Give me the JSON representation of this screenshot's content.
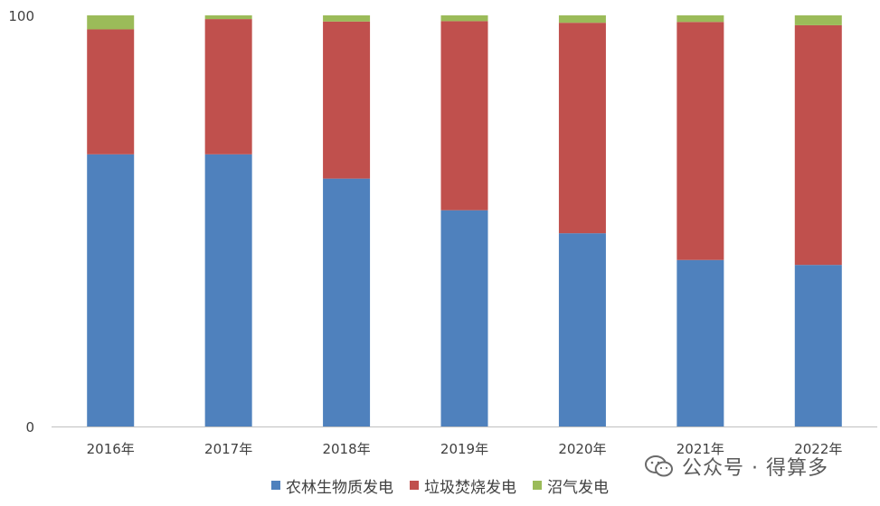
{
  "chart_data": {
    "type": "bar",
    "stacked": true,
    "categories": [
      "2016年",
      "2017年",
      "2018年",
      "2019年",
      "2020年",
      "2021年",
      "2022年"
    ],
    "series": [
      {
        "name": "农林生物质发电",
        "color": "#4F81BD",
        "values": [
          66.2,
          66.2,
          60.3,
          52.6,
          47.0,
          40.5,
          39.3
        ]
      },
      {
        "name": "垃圾焚烧发电",
        "color": "#C0504D",
        "values": [
          30.4,
          32.9,
          38.2,
          46.0,
          51.2,
          57.9,
          58.3
        ]
      },
      {
        "name": "沼气发电",
        "color": "#9BBB59",
        "values": [
          3.4,
          0.9,
          1.5,
          1.4,
          1.8,
          1.6,
          2.4
        ]
      }
    ],
    "y_ticks": [
      "0",
      "100"
    ],
    "ylim": [
      0,
      100
    ],
    "grid": false,
    "legend_position": "bottom"
  },
  "watermark": {
    "text": "公众号 · 得算多"
  }
}
